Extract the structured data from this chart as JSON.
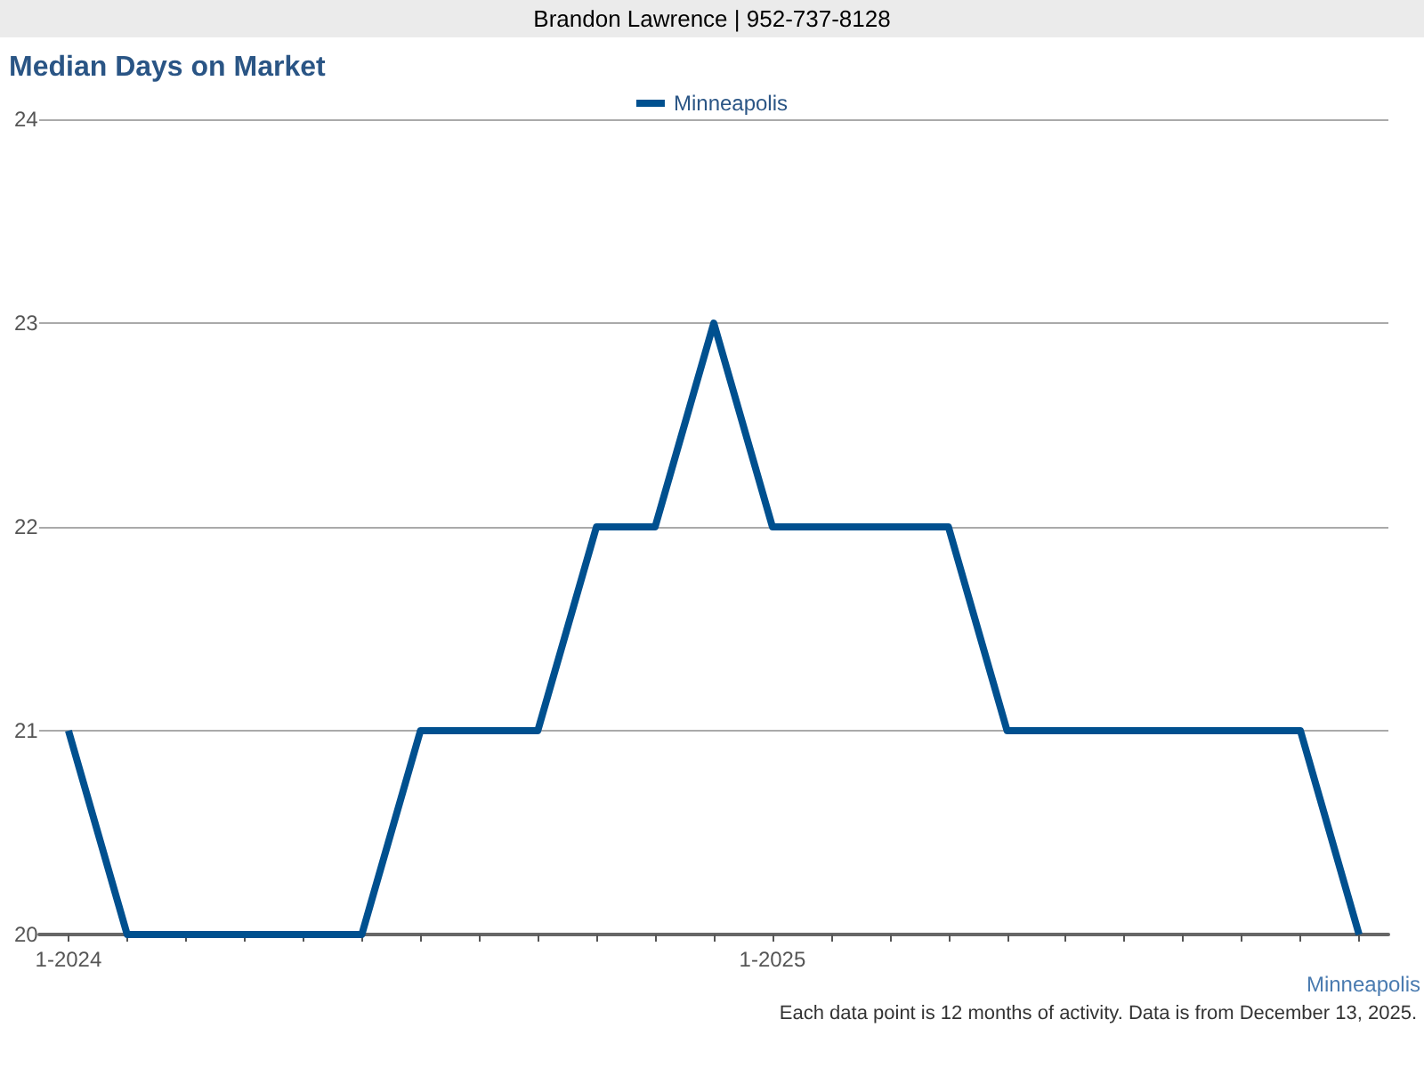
{
  "chart_data": {
    "type": "line",
    "title": "Median Days on Market",
    "subtitle": "Brandon Lawrence | 952-737-8128",
    "annotations": [
      "Minneapolis",
      "Each data point is 12 months of activity. Data is from December 13, 2025."
    ],
    "categories": [
      "1-2024",
      null,
      null,
      null,
      null,
      null,
      null,
      null,
      null,
      null,
      null,
      null,
      "1-2025",
      null,
      null,
      null,
      null,
      null,
      null,
      null,
      null,
      null,
      null
    ],
    "series": [
      {
        "name": "Minneapolis",
        "color": "#00508f",
        "values": [
          21,
          20,
          20,
          20,
          20,
          20,
          21,
          21,
          21,
          22,
          22,
          23,
          22,
          22,
          22,
          22,
          21,
          21,
          21,
          21,
          21,
          21,
          20
        ]
      }
    ],
    "ylim": [
      20,
      24
    ],
    "yticks": [
      20,
      21,
      22,
      23,
      24
    ],
    "grid": "y",
    "legend": "top",
    "marker": "none",
    "line_style": "solid"
  }
}
